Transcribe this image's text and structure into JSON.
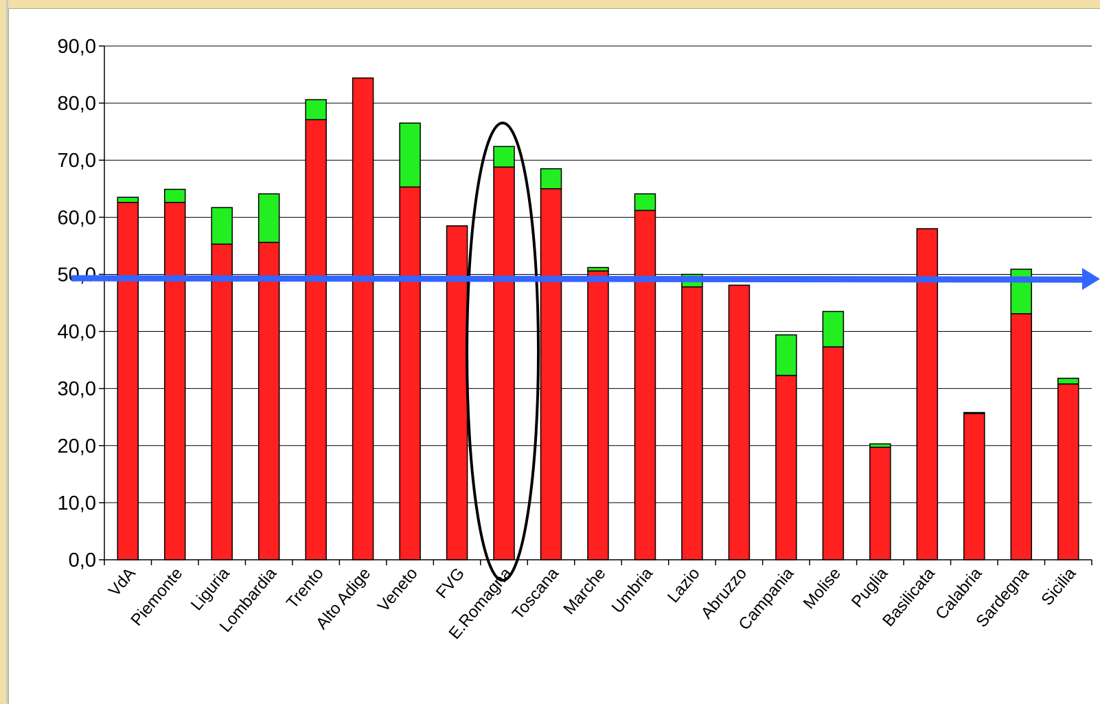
{
  "chart_data": {
    "type": "bar",
    "stacked": true,
    "categories": [
      "VdA",
      "Piemonte",
      "Liguria",
      "Lombardia",
      "Trento",
      "Alto Adige",
      "Veneto",
      "FVG",
      "E.Romagna",
      "Toscana",
      "Marche",
      "Umbria",
      "Lazio",
      "Abruzzo",
      "Campania",
      "Molise",
      "Puglia",
      "Basilicata",
      "Calabria",
      "Sardegna",
      "Sicilia"
    ],
    "series": [
      {
        "color": "#ff2020",
        "values": [
          62.6,
          62.6,
          55.3,
          55.6,
          77.1,
          84.4,
          65.3,
          58.5,
          68.8,
          65.0,
          50.6,
          61.2,
          47.8,
          48.1,
          32.3,
          37.3,
          19.7,
          58.0,
          25.6,
          43.1,
          30.8
        ]
      },
      {
        "color": "#22ee22",
        "values": [
          0.9,
          2.3,
          6.4,
          8.5,
          3.5,
          0.0,
          11.2,
          0.0,
          3.6,
          3.5,
          0.6,
          2.9,
          2.2,
          0.0,
          7.1,
          6.2,
          0.6,
          0.0,
          0.2,
          7.8,
          1.0
        ]
      }
    ],
    "yticks": [
      "0,0",
      "10,0",
      "20,0",
      "30,0",
      "40,0",
      "50,0",
      "60,0",
      "70,0",
      "80,0",
      "90,0"
    ],
    "ylim": [
      0,
      90
    ],
    "grid": true,
    "reference_line": {
      "value": 49.2,
      "color": "#3366ff"
    },
    "highlight_category": "E.Romagna"
  }
}
